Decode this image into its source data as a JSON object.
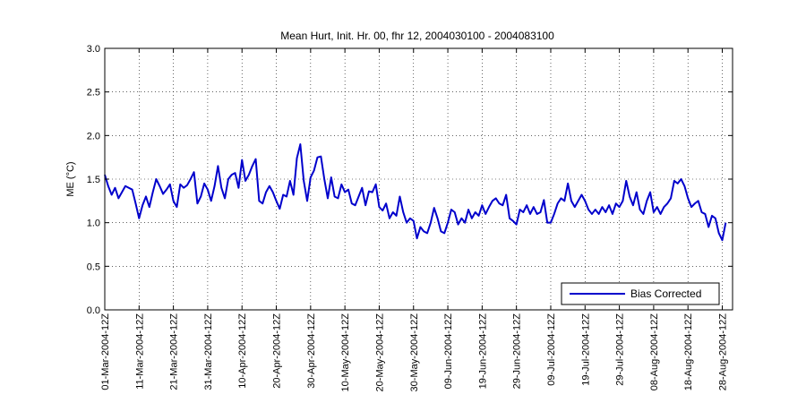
{
  "chart_data": {
    "type": "line",
    "title": "Mean Hurt, Init. Hr. 00, fhr 12, 2004030100 - 2004083100",
    "ylabel": "ME (°C)",
    "xlabel": "",
    "ylim": [
      0,
      3
    ],
    "yticks": [
      "0.0",
      "0.5",
      "1.0",
      "1.5",
      "2.0",
      "2.5",
      "3.0"
    ],
    "xlim_days": [
      0,
      183
    ],
    "xticks": [
      {
        "day": 0,
        "label": "01-Mar-2004-12Z"
      },
      {
        "day": 10,
        "label": "11-Mar-2004-12Z"
      },
      {
        "day": 20,
        "label": "21-Mar-2004-12Z"
      },
      {
        "day": 30,
        "label": "31-Mar-2004-12Z"
      },
      {
        "day": 40,
        "label": "10-Apr-2004-12Z"
      },
      {
        "day": 50,
        "label": "20-Apr-2004-12Z"
      },
      {
        "day": 60,
        "label": "30-Apr-2004-12Z"
      },
      {
        "day": 70,
        "label": "10-May-2004-12Z"
      },
      {
        "day": 80,
        "label": "20-May-2004-12Z"
      },
      {
        "day": 90,
        "label": "30-May-2004-12Z"
      },
      {
        "day": 100,
        "label": "09-Jun-2004-12Z"
      },
      {
        "day": 110,
        "label": "19-Jun-2004-12Z"
      },
      {
        "day": 120,
        "label": "29-Jun-2004-12Z"
      },
      {
        "day": 130,
        "label": "09-Jul-2004-12Z"
      },
      {
        "day": 140,
        "label": "19-Jul-2004-12Z"
      },
      {
        "day": 150,
        "label": "29-Jul-2004-12Z"
      },
      {
        "day": 160,
        "label": "08-Aug-2004-12Z"
      },
      {
        "day": 170,
        "label": "18-Aug-2004-12Z"
      },
      {
        "day": 180,
        "label": "28-Aug-2004-12Z"
      }
    ],
    "grid": true,
    "legend_position": "bottom-right",
    "series": [
      {
        "name": "Bias Corrected",
        "color": "#0000cc",
        "values": [
          1.55,
          1.42,
          1.32,
          1.4,
          1.28,
          1.35,
          1.42,
          1.4,
          1.38,
          1.22,
          1.05,
          1.2,
          1.3,
          1.18,
          1.35,
          1.5,
          1.42,
          1.33,
          1.38,
          1.44,
          1.25,
          1.18,
          1.44,
          1.4,
          1.43,
          1.5,
          1.58,
          1.22,
          1.3,
          1.45,
          1.38,
          1.25,
          1.42,
          1.65,
          1.4,
          1.28,
          1.5,
          1.55,
          1.57,
          1.4,
          1.72,
          1.48,
          1.55,
          1.65,
          1.73,
          1.25,
          1.22,
          1.35,
          1.42,
          1.35,
          1.25,
          1.16,
          1.32,
          1.3,
          1.48,
          1.32,
          1.74,
          1.9,
          1.48,
          1.25,
          1.52,
          1.6,
          1.75,
          1.76,
          1.5,
          1.28,
          1.52,
          1.3,
          1.28,
          1.44,
          1.35,
          1.38,
          1.22,
          1.2,
          1.3,
          1.4,
          1.2,
          1.36,
          1.35,
          1.44,
          1.18,
          1.14,
          1.22,
          1.05,
          1.12,
          1.08,
          1.3,
          1.12,
          1.0,
          1.05,
          1.02,
          0.82,
          0.95,
          0.9,
          0.88,
          1.0,
          1.17,
          1.05,
          0.9,
          0.88,
          1.0,
          1.15,
          1.12,
          0.98,
          1.05,
          1.0,
          1.15,
          1.05,
          1.12,
          1.08,
          1.2,
          1.1,
          1.18,
          1.25,
          1.28,
          1.22,
          1.2,
          1.32,
          1.05,
          1.02,
          0.98,
          1.15,
          1.12,
          1.2,
          1.1,
          1.18,
          1.1,
          1.12,
          1.26,
          1.0,
          1.0,
          1.1,
          1.22,
          1.28,
          1.25,
          1.45,
          1.25,
          1.18,
          1.25,
          1.32,
          1.25,
          1.15,
          1.1,
          1.15,
          1.1,
          1.18,
          1.12,
          1.2,
          1.1,
          1.22,
          1.18,
          1.25,
          1.48,
          1.3,
          1.2,
          1.35,
          1.15,
          1.1,
          1.25,
          1.35,
          1.12,
          1.18,
          1.1,
          1.18,
          1.22,
          1.28,
          1.48,
          1.45,
          1.5,
          1.42,
          1.28,
          1.18,
          1.22,
          1.25,
          1.12,
          1.1,
          0.95,
          1.08,
          1.05,
          0.88,
          0.8,
          1.0
        ]
      }
    ]
  }
}
